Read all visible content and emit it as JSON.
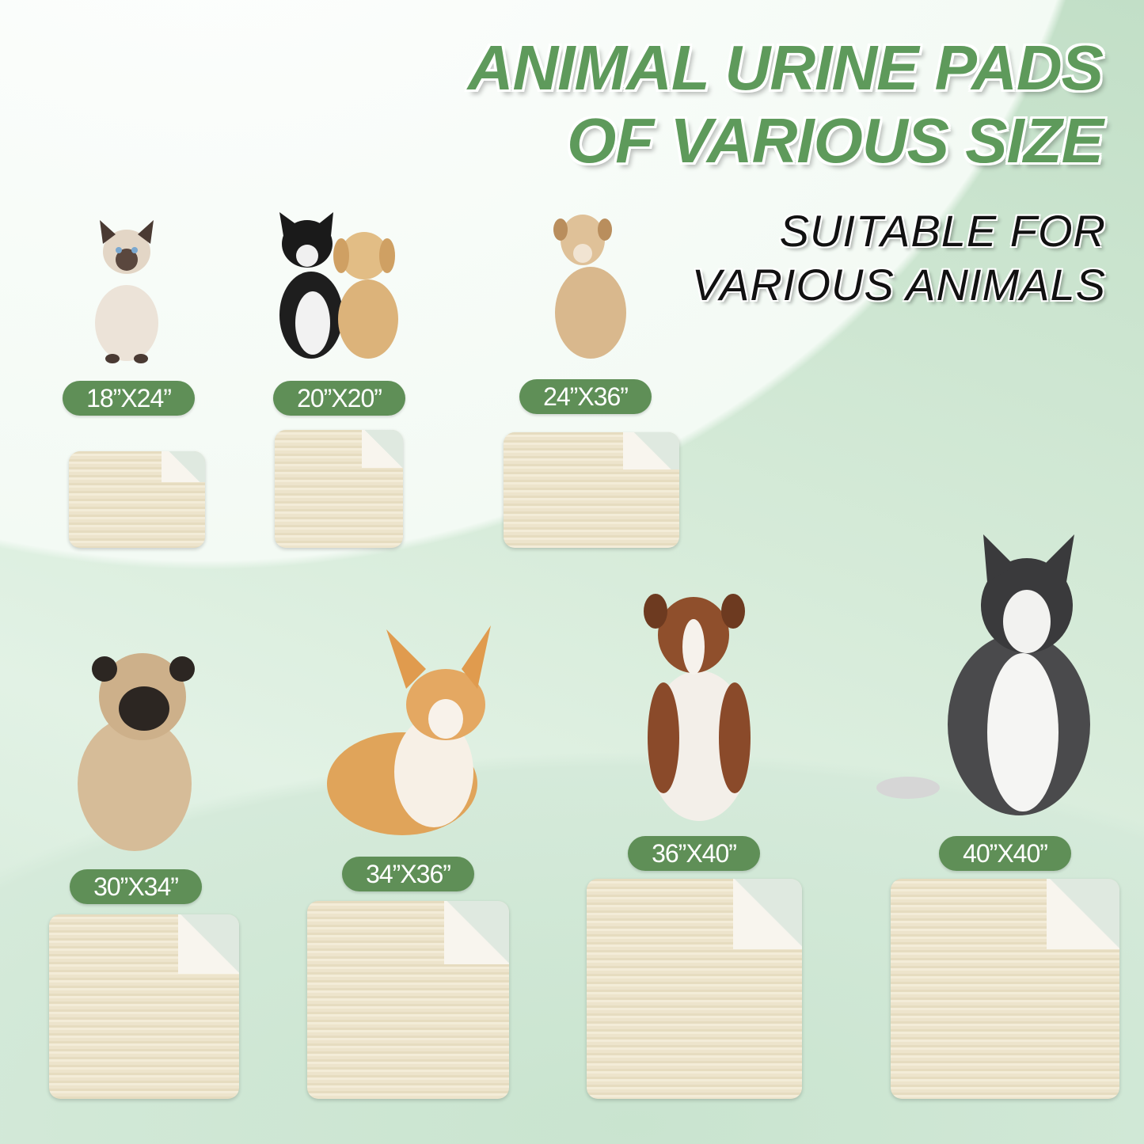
{
  "headline": {
    "line1": "ANIMAL URINE PADS",
    "line2": "OF VARIOUS SIZE"
  },
  "subheadline": {
    "line1": "SUITABLE FOR",
    "line2": "VARIOUS ANIMALS"
  },
  "colors": {
    "accent_green": "#5f8f57",
    "title_green": "#5e9a5b",
    "pad_beige": "#ede4cc"
  },
  "products": [
    {
      "size": "18”X24”",
      "animal": "siamese-cat"
    },
    {
      "size": "20”X20”",
      "animal": "cat-and-puppy"
    },
    {
      "size": "24”X36”",
      "animal": "tan-dog"
    },
    {
      "size": "30”X34”",
      "animal": "pug"
    },
    {
      "size": "34”X36”",
      "animal": "corgi"
    },
    {
      "size": "36”X40”",
      "animal": "australian-shepherd"
    },
    {
      "size": "40”X40”",
      "animal": "husky"
    }
  ]
}
